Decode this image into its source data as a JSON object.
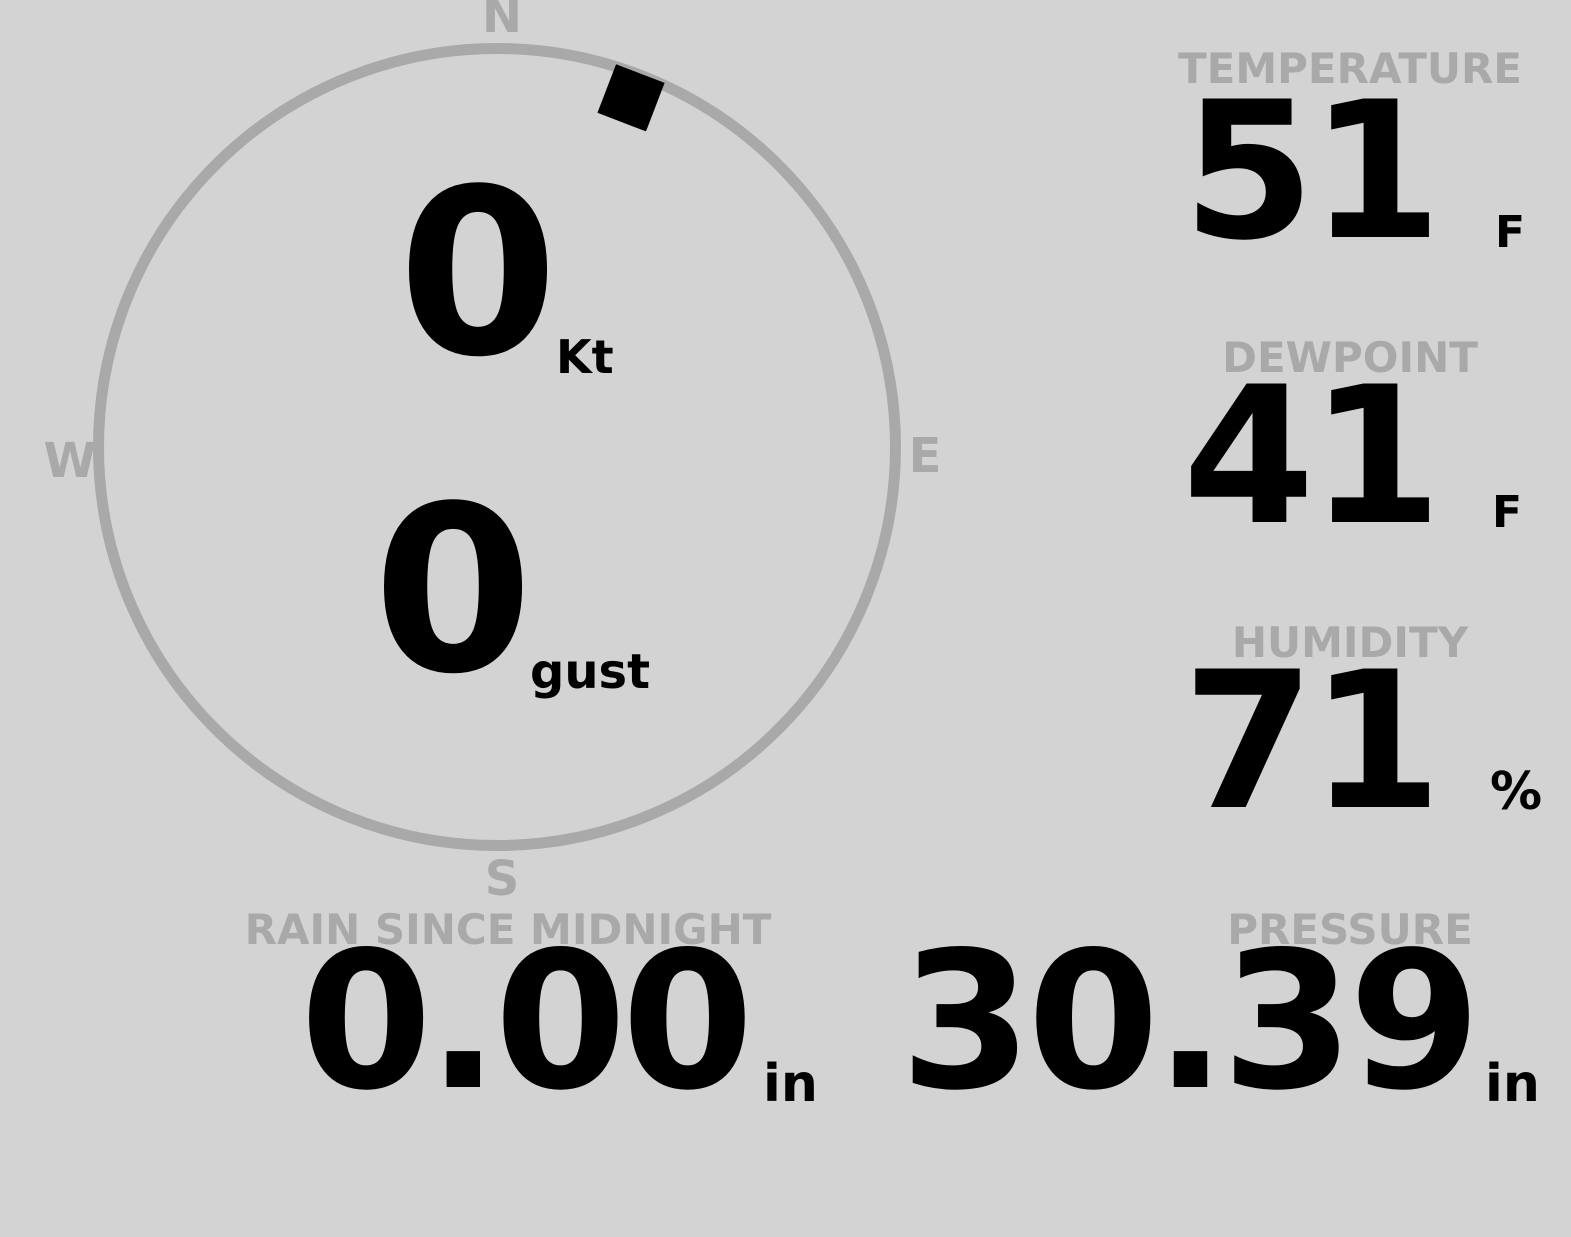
{
  "colors": {
    "background": "#d3d3d3",
    "muted_gray": "#a9a9a9",
    "value_black": "#000000"
  },
  "compass": {
    "labels": {
      "north": "N",
      "east": "E",
      "south": "S",
      "west": "W"
    },
    "wind_direction_deg": 21,
    "speed": {
      "value": "0",
      "unit": "Kt"
    },
    "gust": {
      "value": "0",
      "unit": "gust"
    }
  },
  "metrics": {
    "temperature": {
      "label": "TEMPERATURE",
      "value": "51",
      "unit": "F"
    },
    "dewpoint": {
      "label": "DEWPOINT",
      "value": "41",
      "unit": "F"
    },
    "humidity": {
      "label": "HUMIDITY",
      "value": "71",
      "unit": "%"
    },
    "rain": {
      "label": "RAIN SINCE MIDNIGHT",
      "value": "0.00",
      "unit": "in"
    },
    "pressure": {
      "label": "PRESSURE",
      "value": "30.39",
      "unit": "in"
    }
  }
}
